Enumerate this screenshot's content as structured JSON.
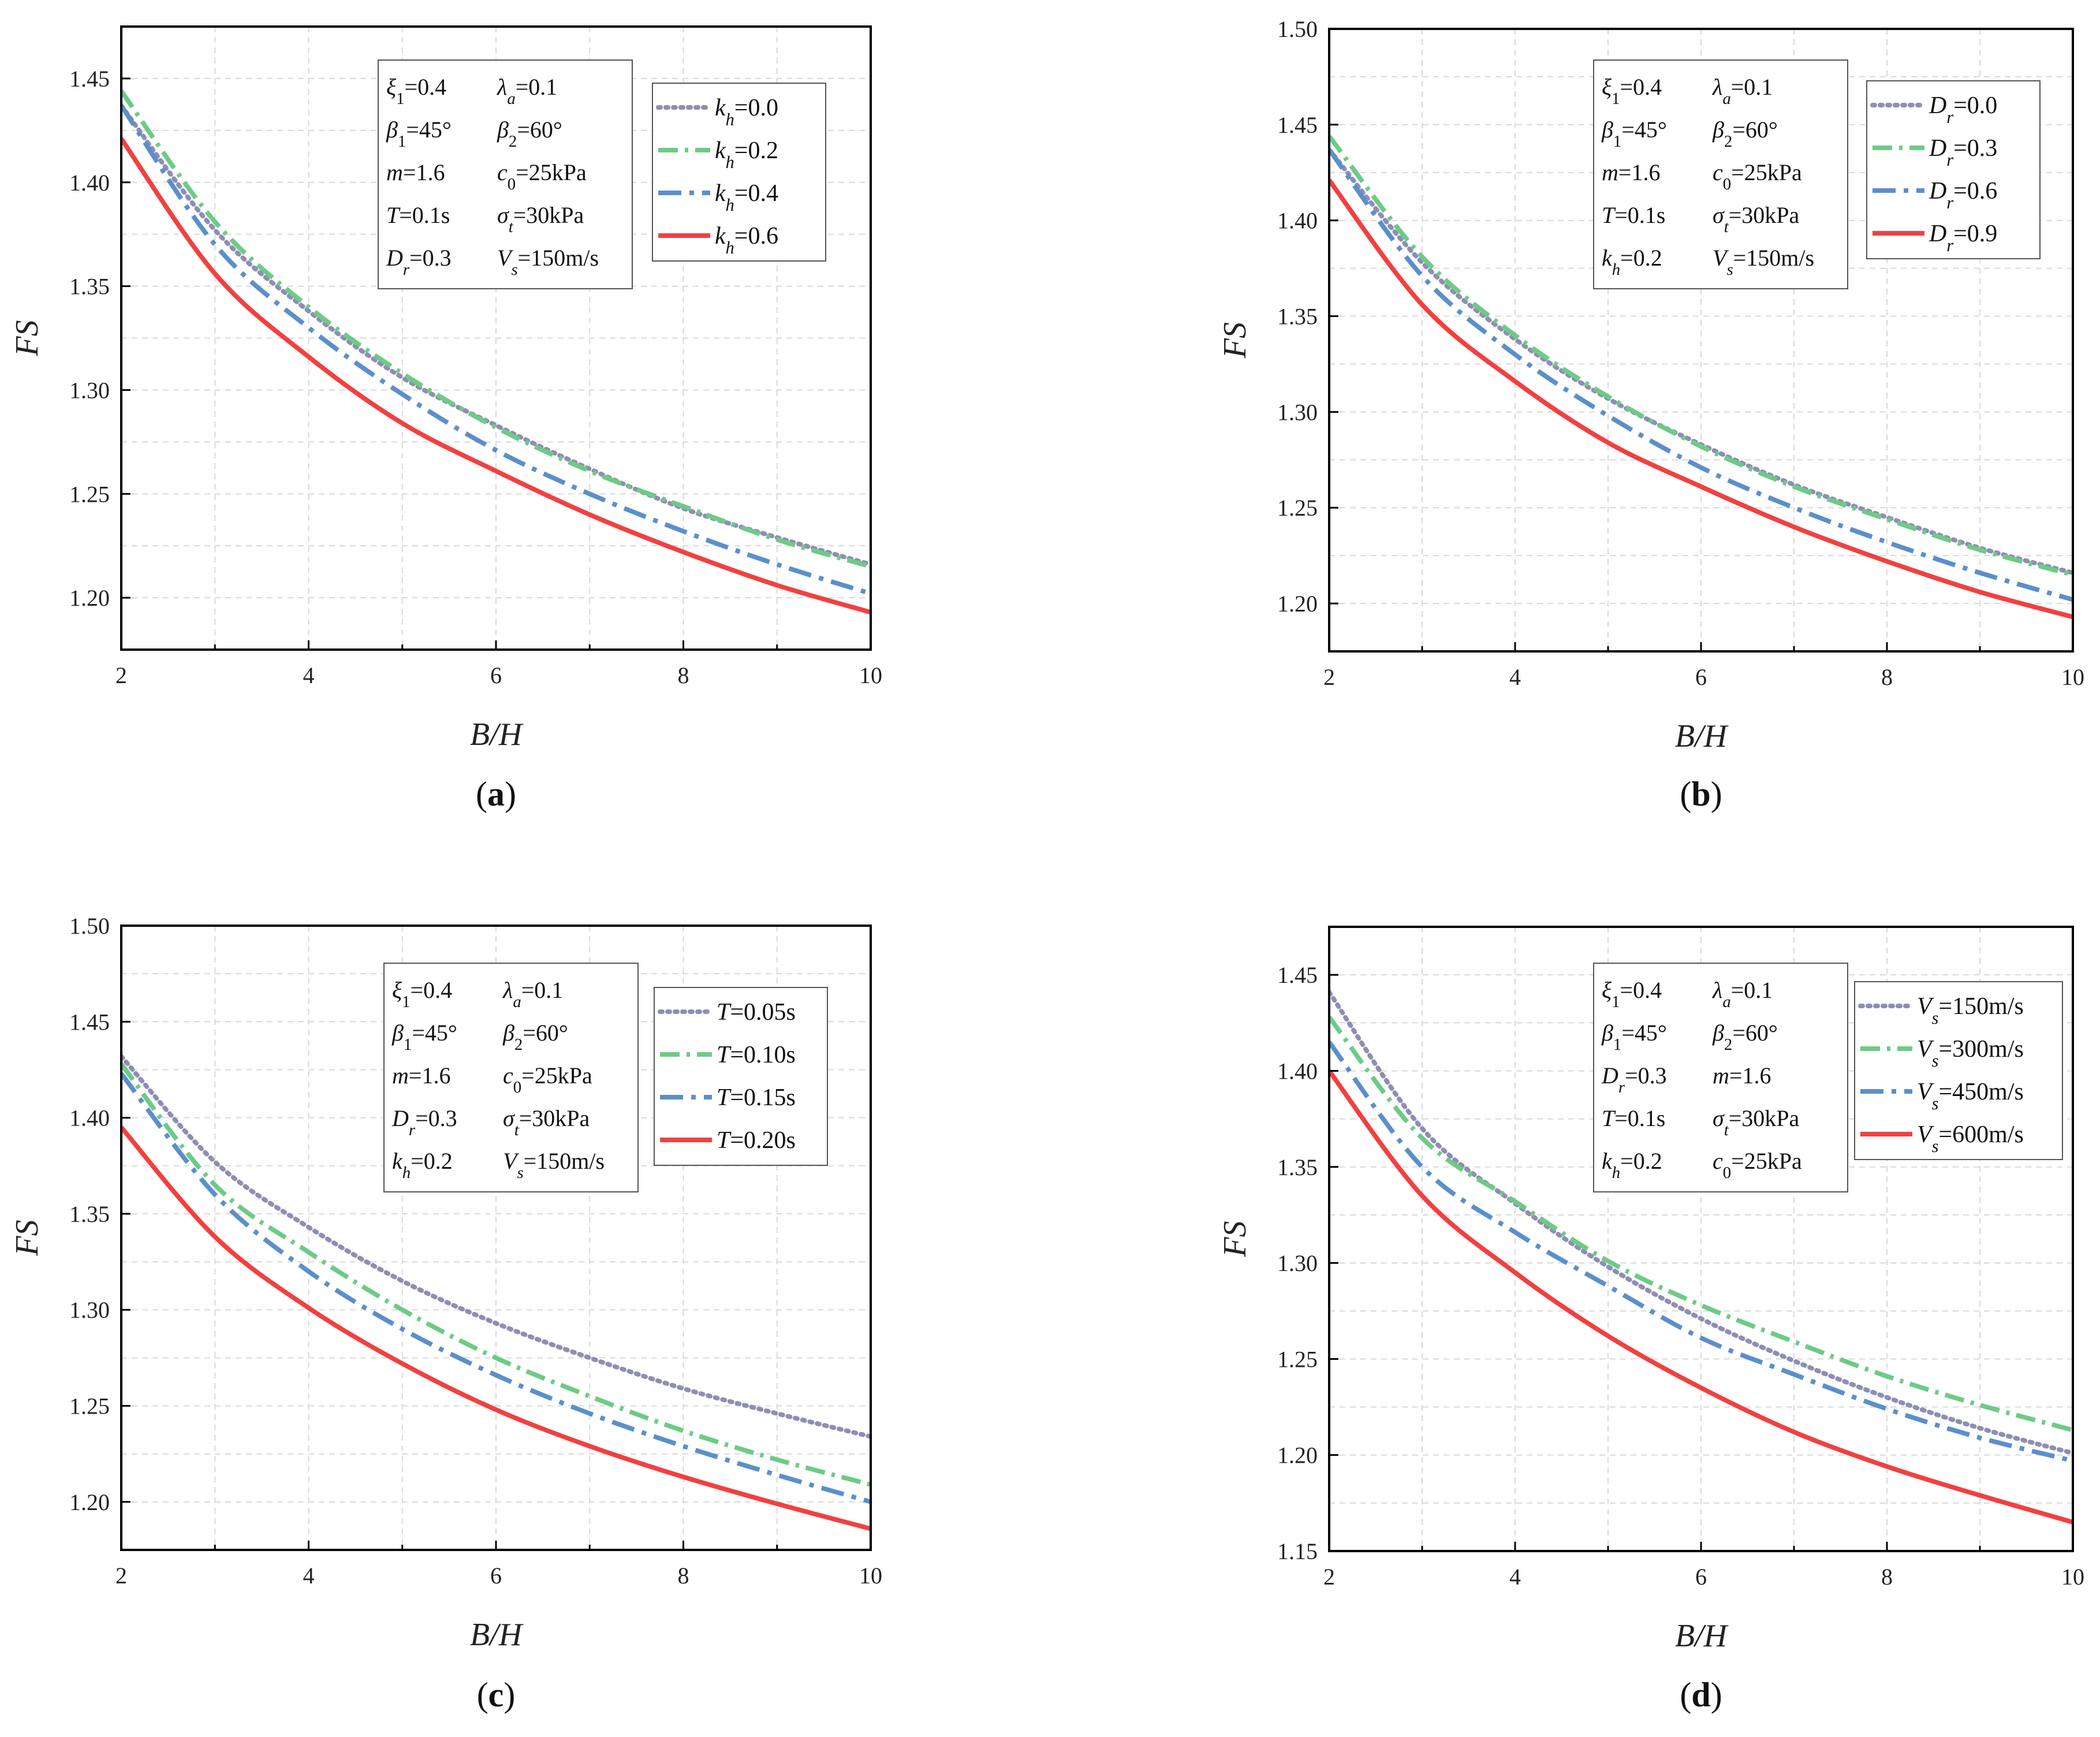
{
  "figure": {
    "colors": {
      "axis": "#000000",
      "grid": "#d9d9d9",
      "text": "#111111"
    },
    "series_styles": [
      {
        "color": "#8E8EB4",
        "dash": "dot"
      },
      {
        "color": "#6DCB86",
        "dash": "dashdot-long"
      },
      {
        "color": "#5B8FCB",
        "dash": "dashdot"
      },
      {
        "color": "#F24040",
        "dash": "solid"
      }
    ]
  },
  "chart_data": [
    {
      "id": "a",
      "type": "line",
      "panel_label": "(a)",
      "panel_letter": "a",
      "xlabel": "B/H",
      "ylabel": "FS",
      "xlim": [
        2,
        10
      ],
      "ylim": [
        1.175,
        1.475
      ],
      "xticks": [
        2,
        4,
        6,
        8,
        10
      ],
      "yticks": [
        1.2,
        1.25,
        1.3,
        1.35,
        1.4,
        1.45
      ],
      "ytick_labels": [
        "1.20",
        "1.25",
        "1.30",
        "1.35",
        "1.40",
        "1.45"
      ],
      "grid": true,
      "info_rows": [
        [
          "ξ1=0.4",
          "λa=0.1"
        ],
        [
          "β1=45°",
          "β2=60°"
        ],
        [
          "m=1.6",
          "c0=25kPa"
        ],
        [
          "T=0.1s",
          "σt=30kPa"
        ],
        [
          "Dr=0.3",
          "Vs=150m/s"
        ]
      ],
      "legend_position": "top-right",
      "x": [
        2,
        3,
        4,
        5,
        6,
        7,
        8,
        9,
        10
      ],
      "series": [
        {
          "name": "kh=0.0",
          "values": [
            1.437,
            1.377,
            1.338,
            1.306,
            1.283,
            1.262,
            1.243,
            1.229,
            1.216
          ]
        },
        {
          "name": "kh=0.2",
          "values": [
            1.444,
            1.381,
            1.34,
            1.308,
            1.282,
            1.261,
            1.244,
            1.228,
            1.215
          ]
        },
        {
          "name": "kh=0.4",
          "values": [
            1.437,
            1.37,
            1.33,
            1.298,
            1.271,
            1.25,
            1.232,
            1.216,
            1.202
          ]
        },
        {
          "name": "kh=0.6",
          "values": [
            1.421,
            1.356,
            1.316,
            1.284,
            1.261,
            1.24,
            1.222,
            1.206,
            1.193
          ]
        }
      ]
    },
    {
      "id": "b",
      "type": "line",
      "panel_label": "(b)",
      "panel_letter": "b",
      "xlabel": "B/H",
      "ylabel": "FS",
      "xlim": [
        2,
        10
      ],
      "ylim": [
        1.175,
        1.5
      ],
      "xticks": [
        2,
        4,
        6,
        8,
        10
      ],
      "yticks": [
        1.2,
        1.25,
        1.3,
        1.35,
        1.4,
        1.45,
        1.5
      ],
      "ytick_labels": [
        "1.20",
        "1.25",
        "1.30",
        "1.35",
        "1.40",
        "1.45",
        "1.50"
      ],
      "grid": true,
      "info_rows": [
        [
          "ξ1=0.4",
          "λa=0.1"
        ],
        [
          "β1=45°",
          "β2=60°"
        ],
        [
          "m=1.6",
          "c0=25kPa"
        ],
        [
          "T=0.1s",
          "σt=30kPa"
        ],
        [
          "kh=0.2",
          "Vs=150m/s"
        ]
      ],
      "legend_position": "top-right",
      "x": [
        2,
        3,
        4,
        5,
        6,
        7,
        8,
        9,
        10
      ],
      "series": [
        {
          "name": "Dr=0.0",
          "values": [
            1.437,
            1.378,
            1.338,
            1.307,
            1.283,
            1.262,
            1.245,
            1.229,
            1.216
          ]
        },
        {
          "name": "Dr=0.3",
          "values": [
            1.444,
            1.381,
            1.34,
            1.308,
            1.282,
            1.261,
            1.244,
            1.228,
            1.215
          ]
        },
        {
          "name": "Dr=0.6",
          "values": [
            1.437,
            1.371,
            1.33,
            1.298,
            1.271,
            1.25,
            1.232,
            1.216,
            1.202
          ]
        },
        {
          "name": "Dr=0.9",
          "values": [
            1.421,
            1.356,
            1.316,
            1.284,
            1.261,
            1.24,
            1.222,
            1.206,
            1.193
          ]
        }
      ]
    },
    {
      "id": "c",
      "type": "line",
      "panel_label": "(c)",
      "panel_letter": "c",
      "xlabel": "B/H",
      "ylabel": "FS",
      "xlim": [
        2,
        10
      ],
      "ylim": [
        1.175,
        1.5
      ],
      "xticks": [
        2,
        4,
        6,
        8,
        10
      ],
      "yticks": [
        1.2,
        1.25,
        1.3,
        1.35,
        1.4,
        1.45,
        1.5
      ],
      "ytick_labels": [
        "1.20",
        "1.25",
        "1.30",
        "1.35",
        "1.40",
        "1.45",
        "1.50"
      ],
      "grid": true,
      "info_rows": [
        [
          "ξ1=0.4",
          "λa=0.1"
        ],
        [
          "β1=45°",
          "β2=60°"
        ],
        [
          "m=1.6",
          "c0=25kPa"
        ],
        [
          "Dr=0.3",
          "σt=30kPa"
        ],
        [
          "kh=0.2",
          "Vs=150m/s"
        ]
      ],
      "legend_position": "top-right",
      "x": [
        2,
        3,
        4,
        5,
        6,
        7,
        8,
        9,
        10
      ],
      "series": [
        {
          "name": "T=0.05s",
          "values": [
            1.432,
            1.377,
            1.343,
            1.315,
            1.293,
            1.275,
            1.259,
            1.246,
            1.234
          ]
        },
        {
          "name": "T=0.10s",
          "values": [
            1.428,
            1.365,
            1.33,
            1.3,
            1.275,
            1.255,
            1.237,
            1.222,
            1.209
          ]
        },
        {
          "name": "T=0.15s",
          "values": [
            1.423,
            1.36,
            1.32,
            1.29,
            1.266,
            1.246,
            1.229,
            1.214,
            1.2
          ]
        },
        {
          "name": "T=0.20s",
          "values": [
            1.395,
            1.338,
            1.301,
            1.272,
            1.248,
            1.229,
            1.213,
            1.199,
            1.186
          ]
        }
      ]
    },
    {
      "id": "d",
      "type": "line",
      "panel_label": "(d)",
      "panel_letter": "d",
      "xlabel": "B/H",
      "ylabel": "FS",
      "xlim": [
        2,
        10
      ],
      "ylim": [
        1.15,
        1.475
      ],
      "xticks": [
        2,
        4,
        6,
        8,
        10
      ],
      "yticks": [
        1.15,
        1.2,
        1.25,
        1.3,
        1.35,
        1.4,
        1.45
      ],
      "ytick_labels": [
        "1.15",
        "1.20",
        "1.25",
        "1.30",
        "1.35",
        "1.40",
        "1.45"
      ],
      "grid": true,
      "info_rows": [
        [
          "ξ1=0.4",
          "λa=0.1"
        ],
        [
          "β1=45°",
          "β2=60°"
        ],
        [
          "Dr=0.3",
          "m=1.6"
        ],
        [
          "T=0.1s",
          "σt=30kPa"
        ],
        [
          "kh=0.2",
          "c0=25kPa"
        ]
      ],
      "legend_position": "top-right",
      "x": [
        2,
        3,
        4,
        5,
        6,
        7,
        8,
        9,
        10
      ],
      "series": [
        {
          "name": "Vs=150m/s",
          "values": [
            1.441,
            1.37,
            1.331,
            1.298,
            1.271,
            1.249,
            1.23,
            1.214,
            1.201
          ]
        },
        {
          "name": "Vs=300m/s",
          "values": [
            1.428,
            1.365,
            1.332,
            1.301,
            1.278,
            1.259,
            1.241,
            1.226,
            1.213
          ]
        },
        {
          "name": "Vs=450m/s",
          "values": [
            1.415,
            1.35,
            1.316,
            1.288,
            1.261,
            1.242,
            1.224,
            1.209,
            1.197
          ]
        },
        {
          "name": "Vs=600m/s",
          "values": [
            1.4,
            1.335,
            1.295,
            1.262,
            1.235,
            1.212,
            1.194,
            1.179,
            1.165
          ]
        }
      ]
    }
  ]
}
